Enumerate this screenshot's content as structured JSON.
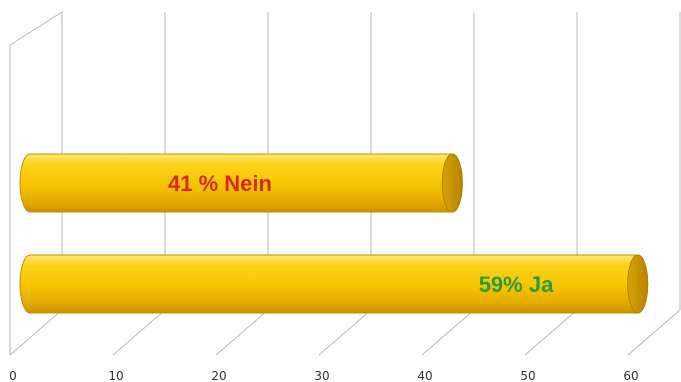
{
  "chart_data": {
    "type": "bar",
    "orientation": "horizontal",
    "style": "3d-cylinder",
    "categories": [
      "Nein",
      "Ja"
    ],
    "values": [
      41,
      59
    ],
    "data_labels": [
      "41 % Nein",
      "59% Ja"
    ],
    "label_colors": [
      "#d42a1e",
      "#2e9a3a"
    ],
    "bar_color": "#f5c400",
    "xlim": [
      0,
      60
    ],
    "x_ticks": [
      "0",
      "10",
      "20",
      "30",
      "40",
      "50",
      "60"
    ],
    "grid": true,
    "title": "",
    "xlabel": "",
    "ylabel": ""
  }
}
